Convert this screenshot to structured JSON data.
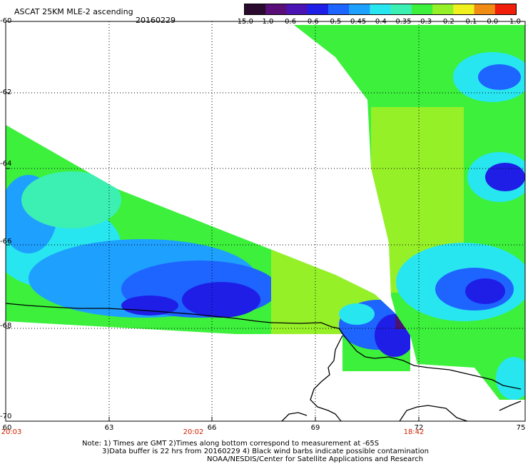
{
  "header": {
    "title": "ASCAT 25KM MLE-2 ascending",
    "date": "20160229"
  },
  "colorbar": {
    "labels": [
      "-15.0",
      "-1.0",
      "-0.6",
      "-0.6",
      "-0.5",
      "-0.45",
      "-0.4",
      "-0.35",
      "-0.3",
      "-0.2",
      "-0.1",
      "0.0",
      "1.0"
    ],
    "colors": [
      "#2a0a2e",
      "#5a0f78",
      "#4a14b4",
      "#1e1ee6",
      "#1e64ff",
      "#1ea0ff",
      "#28e6f0",
      "#3cf0b4",
      "#3cf03c",
      "#96f028",
      "#f0f01e",
      "#f08c14",
      "#f01e0a"
    ]
  },
  "axes": {
    "lat_labels": [
      "-60",
      "-62",
      "-64",
      "-66",
      "-68",
      "-70"
    ],
    "lon_labels": [
      "60",
      "63",
      "66",
      "69",
      "72",
      "75"
    ],
    "time_labels": [
      "20:03",
      "20:02",
      "18:42"
    ]
  },
  "footer": {
    "line1": "Note: 1) Times are GMT 2)Times along bottom correspond to measurement at -65S",
    "line2": "3)Data buffer is 22 hrs from 20160229 4) Black wind barbs indicate possible contamination",
    "line3": "NOAA/NESDIS/Center for Satellite Applications and Research"
  }
}
